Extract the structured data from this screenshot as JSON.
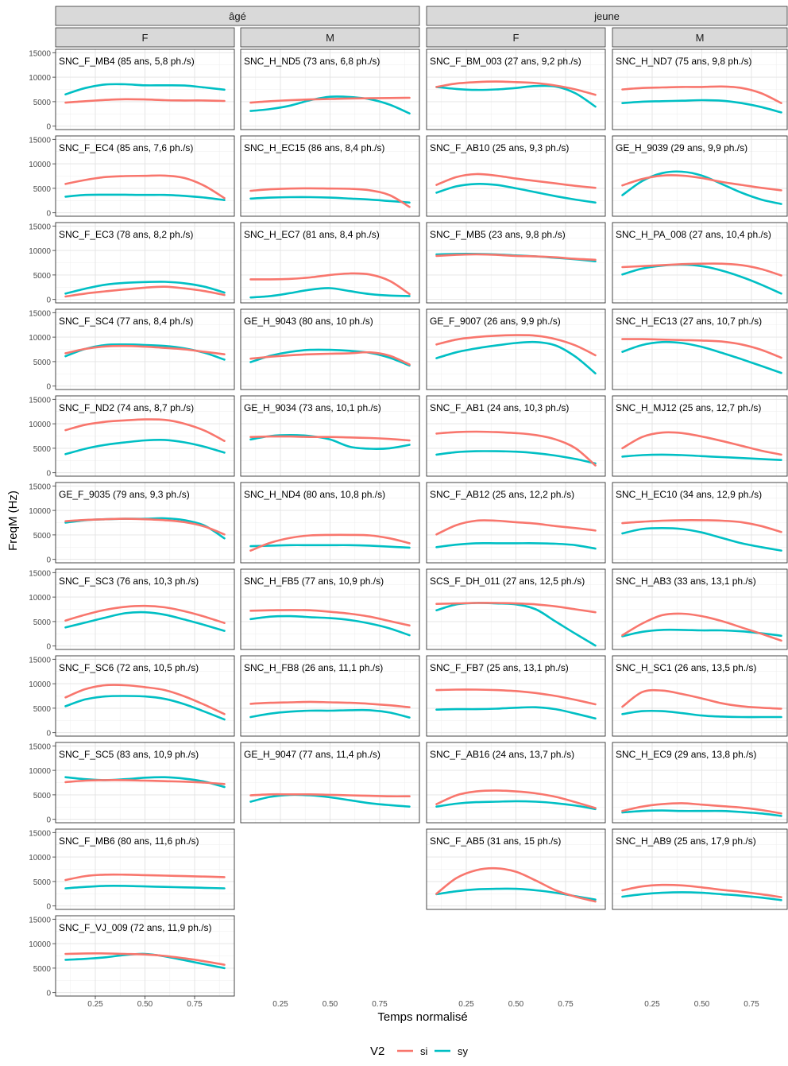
{
  "chart_data": {
    "type": "line",
    "ylabel": "FreqM (Hz)",
    "xlabel": "Temps normalisé",
    "x_ticks": [
      0.25,
      0.5,
      0.75
    ],
    "y_ticks": [
      0,
      5000,
      10000,
      15000
    ],
    "xlim": [
      0.05,
      0.95
    ],
    "ylim": [
      -700,
      15700
    ],
    "grid": true,
    "legend": {
      "title": "V2",
      "position": "bottom",
      "entries": [
        {
          "label": "si",
          "color": "#F8766D"
        },
        {
          "label": "sy",
          "color": "#00BFC4"
        }
      ]
    },
    "strip_groups": [
      "âgé",
      "jeune"
    ],
    "strip_sexes": [
      "F",
      "M"
    ],
    "x": [
      0.1,
      0.2,
      0.3,
      0.4,
      0.5,
      0.6,
      0.7,
      0.8,
      0.9
    ],
    "panels": [
      {
        "col": 0,
        "row": 0,
        "label": "SNC_F_MB4 (85 ans, 5,8 ph./s)",
        "si": [
          4800,
          5100,
          5350,
          5500,
          5450,
          5300,
          5250,
          5250,
          5150
        ],
        "sy": [
          6500,
          7800,
          8500,
          8550,
          8350,
          8350,
          8300,
          7900,
          7450
        ]
      },
      {
        "col": 0,
        "row": 1,
        "label": "SNC_F_EC4 (85 ans, 7,6 ph./s)",
        "si": [
          5900,
          6700,
          7300,
          7500,
          7550,
          7600,
          7100,
          5500,
          3000
        ],
        "sy": [
          3300,
          3650,
          3700,
          3700,
          3650,
          3650,
          3450,
          3100,
          2600
        ]
      },
      {
        "col": 0,
        "row": 2,
        "label": "SNC_F_EC3 (78 ans, 8,2 ph./s)",
        "si": [
          600,
          1200,
          1650,
          2050,
          2400,
          2600,
          2250,
          1700,
          900
        ],
        "sy": [
          1200,
          2200,
          3000,
          3400,
          3550,
          3600,
          3300,
          2600,
          1400
        ]
      },
      {
        "col": 0,
        "row": 3,
        "label": "SNC_F_SC4 (77 ans, 8,4 ph./s)",
        "si": [
          6700,
          7600,
          8100,
          8200,
          8050,
          7800,
          7500,
          7000,
          6500
        ],
        "sy": [
          6100,
          7600,
          8400,
          8500,
          8400,
          8200,
          7700,
          6800,
          5400
        ]
      },
      {
        "col": 0,
        "row": 4,
        "label": "SNC_F_ND2 (74 ans, 8,7 ph./s)",
        "si": [
          8700,
          9800,
          10400,
          10700,
          10900,
          10800,
          10000,
          8600,
          6500
        ],
        "sy": [
          3800,
          4900,
          5700,
          6200,
          6600,
          6700,
          6200,
          5300,
          4100
        ]
      },
      {
        "col": 0,
        "row": 5,
        "label": "GE_F_9035 (79 ans, 9,3 ph./s)",
        "si": [
          7800,
          8050,
          8200,
          8300,
          8200,
          8000,
          7600,
          6700,
          5100
        ],
        "sy": [
          7500,
          8000,
          8200,
          8300,
          8300,
          8400,
          8000,
          6900,
          4300
        ]
      },
      {
        "col": 0,
        "row": 6,
        "label": "SNC_F_SC3 (76 ans, 10,3 ph./s)",
        "si": [
          5200,
          6400,
          7400,
          8000,
          8200,
          7900,
          7100,
          6000,
          4700
        ],
        "sy": [
          3800,
          4800,
          5800,
          6700,
          6900,
          6400,
          5400,
          4300,
          3100
        ]
      },
      {
        "col": 0,
        "row": 7,
        "label": "SNC_F_SC6 (72 ans, 10,5 ph./s)",
        "si": [
          7200,
          8900,
          9700,
          9700,
          9300,
          8700,
          7400,
          5700,
          3800
        ],
        "sy": [
          5400,
          6800,
          7400,
          7500,
          7400,
          6900,
          5800,
          4300,
          2700
        ]
      },
      {
        "col": 0,
        "row": 8,
        "label": "SNC_F_SC5 (83 ans, 10,9 ph./s)",
        "si": [
          7600,
          7900,
          8000,
          8000,
          7900,
          7800,
          7700,
          7500,
          7200
        ],
        "sy": [
          8600,
          8200,
          8000,
          8200,
          8500,
          8600,
          8300,
          7700,
          6600
        ]
      },
      {
        "col": 0,
        "row": 9,
        "label": "SNC_F_MB6 (80 ans, 11,6 ph./s)",
        "si": [
          5300,
          6100,
          6400,
          6400,
          6300,
          6200,
          6100,
          6000,
          5900
        ],
        "sy": [
          3600,
          3900,
          4100,
          4100,
          4000,
          3900,
          3800,
          3700,
          3600
        ]
      },
      {
        "col": 0,
        "row": 10,
        "label": "SNC_F_VJ_009 (72 ans, 11,9 ph./s)",
        "si": [
          7900,
          8000,
          8000,
          7900,
          7800,
          7500,
          7000,
          6400,
          5700
        ],
        "sy": [
          6700,
          6900,
          7200,
          7700,
          7900,
          7400,
          6600,
          5800,
          5000
        ]
      },
      {
        "col": 1,
        "row": 0,
        "label": "SNC_H_ND5 (73 ans, 6,8 ph./s)",
        "si": [
          4800,
          5100,
          5300,
          5450,
          5550,
          5650,
          5700,
          5750,
          5800
        ],
        "sy": [
          3100,
          3500,
          4200,
          5300,
          6000,
          5950,
          5500,
          4400,
          2600
        ]
      },
      {
        "col": 1,
        "row": 1,
        "label": "SNC_H_EC15 (86 ans, 8,4 ph./s)",
        "si": [
          4500,
          4800,
          4950,
          5000,
          4950,
          4900,
          4600,
          3600,
          1200
        ],
        "sy": [
          2900,
          3100,
          3200,
          3200,
          3100,
          2900,
          2700,
          2400,
          2100
        ]
      },
      {
        "col": 1,
        "row": 2,
        "label": "SNC_H_EC7 (81 ans, 8,4 ph./s)",
        "si": [
          4100,
          4100,
          4200,
          4500,
          5000,
          5300,
          5100,
          3800,
          1100
        ],
        "sy": [
          400,
          700,
          1300,
          2000,
          2300,
          1700,
          1100,
          800,
          700
        ]
      },
      {
        "col": 1,
        "row": 3,
        "label": "GE_H_9043 (80 ans, 10 ph./s)",
        "si": [
          5600,
          6000,
          6300,
          6500,
          6600,
          6700,
          6900,
          6200,
          4400
        ],
        "sy": [
          4900,
          6200,
          7000,
          7400,
          7400,
          7200,
          6800,
          5800,
          4200
        ]
      },
      {
        "col": 1,
        "row": 4,
        "label": "GE_H_9034 (73 ans, 10,1 ph./s)",
        "si": [
          7300,
          7400,
          7400,
          7300,
          7300,
          7200,
          7100,
          6900,
          6600
        ],
        "sy": [
          6800,
          7500,
          7700,
          7500,
          6800,
          5300,
          4900,
          5000,
          5700
        ]
      },
      {
        "col": 1,
        "row": 5,
        "label": "SNC_H_ND4 (80 ans, 10,8 ph./s)",
        "si": [
          1800,
          3400,
          4400,
          4900,
          5000,
          5000,
          4900,
          4300,
          3300
        ],
        "sy": [
          2700,
          2800,
          2900,
          2900,
          2900,
          2900,
          2800,
          2600,
          2400
        ]
      },
      {
        "col": 1,
        "row": 6,
        "label": "SNC_H_FB5 (77 ans, 10,9 ph./s)",
        "si": [
          7200,
          7300,
          7350,
          7300,
          7000,
          6600,
          6000,
          5100,
          4200
        ],
        "sy": [
          5500,
          6000,
          6100,
          5900,
          5700,
          5300,
          4600,
          3600,
          2200
        ]
      },
      {
        "col": 1,
        "row": 7,
        "label": "SNC_H_FB8 (26 ans, 11,1 ph./s)",
        "si": [
          5900,
          6100,
          6200,
          6300,
          6200,
          6100,
          5900,
          5600,
          5200
        ],
        "sy": [
          3200,
          3900,
          4300,
          4500,
          4500,
          4600,
          4600,
          4100,
          3100
        ]
      },
      {
        "col": 1,
        "row": 8,
        "label": "GE_H_9047 (77 ans, 11,4 ph./s)",
        "si": [
          4900,
          5100,
          5100,
          5100,
          5000,
          4900,
          4800,
          4700,
          4700
        ],
        "sy": [
          3600,
          4600,
          5000,
          4900,
          4500,
          3900,
          3300,
          2900,
          2600
        ]
      },
      {
        "col": 2,
        "row": 0,
        "label": "SNC_F_BM_003 (27 ans, 9,2 ph./s)",
        "si": [
          8000,
          8700,
          9000,
          9100,
          9000,
          8800,
          8300,
          7500,
          6400
        ],
        "sy": [
          8000,
          7600,
          7400,
          7500,
          7800,
          8200,
          8100,
          6700,
          4000
        ]
      },
      {
        "col": 2,
        "row": 1,
        "label": "SNC_F_AB10 (25 ans, 9,3 ph./s)",
        "si": [
          5700,
          7300,
          7900,
          7600,
          7000,
          6500,
          6000,
          5500,
          5100
        ],
        "sy": [
          4100,
          5400,
          5900,
          5700,
          5000,
          4200,
          3400,
          2700,
          2100
        ]
      },
      {
        "col": 2,
        "row": 2,
        "label": "SNC_F_MB5 (23 ans, 9,8 ph./s)",
        "si": [
          8900,
          9100,
          9200,
          9100,
          8900,
          8800,
          8600,
          8300,
          8100
        ],
        "sy": [
          9200,
          9300,
          9300,
          9200,
          9000,
          8800,
          8500,
          8200,
          7800
        ]
      },
      {
        "col": 2,
        "row": 3,
        "label": "GE_F_9007 (26 ans, 9,9 ph./s)",
        "si": [
          8500,
          9500,
          10000,
          10300,
          10400,
          10300,
          9600,
          8300,
          6300
        ],
        "sy": [
          5700,
          6900,
          7700,
          8300,
          8800,
          9000,
          8300,
          6000,
          2600
        ]
      },
      {
        "col": 2,
        "row": 4,
        "label": "SNC_F_AB1 (24 ans, 10,3 ph./s)",
        "si": [
          8000,
          8300,
          8400,
          8300,
          8100,
          7700,
          6800,
          5000,
          1500
        ],
        "sy": [
          3700,
          4200,
          4400,
          4400,
          4300,
          4000,
          3500,
          2800,
          1900
        ]
      },
      {
        "col": 2,
        "row": 5,
        "label": "SNC_F_AB12 (25 ans, 12,2 ph./s)",
        "si": [
          5100,
          7000,
          7900,
          7900,
          7600,
          7300,
          6800,
          6400,
          5900
        ],
        "sy": [
          2500,
          3000,
          3300,
          3300,
          3300,
          3300,
          3200,
          2900,
          2200
        ]
      },
      {
        "col": 2,
        "row": 6,
        "label": "SCS_F_DH_011 (27 ans, 12,5 ph./s)",
        "si": [
          8600,
          8700,
          8800,
          8800,
          8700,
          8500,
          8100,
          7500,
          6900
        ],
        "sy": [
          7300,
          8500,
          8800,
          8700,
          8500,
          7500,
          5000,
          2500,
          100
        ]
      },
      {
        "col": 2,
        "row": 7,
        "label": "SNC_F_FB7 (25 ans, 13,1 ph./s)",
        "si": [
          8700,
          8800,
          8800,
          8700,
          8500,
          8100,
          7500,
          6700,
          5800
        ],
        "sy": [
          4700,
          4800,
          4800,
          4900,
          5100,
          5200,
          4800,
          3900,
          2900
        ]
      },
      {
        "col": 2,
        "row": 8,
        "label": "SNC_F_AB16 (24 ans, 13,7 ph./s)",
        "si": [
          3100,
          4900,
          5700,
          5900,
          5700,
          5300,
          4600,
          3500,
          2300
        ],
        "sy": [
          2600,
          3200,
          3500,
          3600,
          3700,
          3600,
          3300,
          2800,
          2100
        ]
      },
      {
        "col": 2,
        "row": 9,
        "label": "SNC_F_AB5 (31 ans, 15 ph./s)",
        "si": [
          2500,
          5700,
          7300,
          7700,
          7000,
          5200,
          3200,
          1900,
          900
        ],
        "sy": [
          2400,
          3000,
          3400,
          3500,
          3500,
          3200,
          2700,
          2000,
          1300
        ]
      },
      {
        "col": 3,
        "row": 0,
        "label": "SNC_H_ND7 (75 ans, 9,8 ph./s)",
        "si": [
          7500,
          7800,
          7900,
          8000,
          8000,
          8100,
          7800,
          6700,
          4700
        ],
        "sy": [
          4700,
          5000,
          5100,
          5200,
          5300,
          5200,
          4700,
          3900,
          2800
        ]
      },
      {
        "col": 3,
        "row": 1,
        "label": "GE_H_9039 (29 ans, 9,9 ph./s)",
        "si": [
          5600,
          6900,
          7600,
          7600,
          7100,
          6300,
          5700,
          5100,
          4600
        ],
        "sy": [
          3600,
          6500,
          8100,
          8400,
          7600,
          5900,
          4100,
          2700,
          1800
        ]
      },
      {
        "col": 3,
        "row": 2,
        "label": "SNC_H_PA_008 (27 ans, 10,4 ph./s)",
        "si": [
          6600,
          6800,
          7000,
          7200,
          7300,
          7300,
          7000,
          6200,
          4900
        ],
        "sy": [
          5100,
          6300,
          6900,
          7100,
          6800,
          5900,
          4600,
          3000,
          1200
        ]
      },
      {
        "col": 3,
        "row": 3,
        "label": "SNC_H_EC13 (27 ans, 10,7 ph./s)",
        "si": [
          9600,
          9600,
          9500,
          9400,
          9300,
          9100,
          8500,
          7400,
          5800
        ],
        "sy": [
          7000,
          8400,
          9000,
          8800,
          8000,
          6800,
          5500,
          4100,
          2700
        ]
      },
      {
        "col": 3,
        "row": 4,
        "label": "SNC_H_MJ12 (25 ans, 12,7 ph./s)",
        "si": [
          5000,
          7300,
          8200,
          8100,
          7400,
          6500,
          5500,
          4500,
          3700
        ],
        "sy": [
          3300,
          3600,
          3700,
          3600,
          3400,
          3200,
          3000,
          2800,
          2600
        ]
      },
      {
        "col": 3,
        "row": 5,
        "label": "SNC_H_EC10 (34 ans, 12,9 ph./s)",
        "si": [
          7400,
          7700,
          7900,
          8000,
          8000,
          7900,
          7600,
          6800,
          5600
        ],
        "sy": [
          5300,
          6200,
          6400,
          6200,
          5500,
          4400,
          3300,
          2500,
          1800
        ]
      },
      {
        "col": 3,
        "row": 6,
        "label": "SNC_H_AB3 (33 ans, 13,1 ph./s)",
        "si": [
          2200,
          4600,
          6300,
          6600,
          6100,
          5100,
          3800,
          2500,
          1100
        ],
        "sy": [
          2000,
          2900,
          3300,
          3300,
          3200,
          3200,
          3000,
          2600,
          2100
        ]
      },
      {
        "col": 3,
        "row": 7,
        "label": "SNC_H_SC1 (26 ans, 13,5 ph./s)",
        "si": [
          5300,
          8300,
          8600,
          7900,
          7000,
          6000,
          5400,
          5100,
          4900
        ],
        "sy": [
          3800,
          4400,
          4400,
          4000,
          3500,
          3300,
          3200,
          3200,
          3200
        ]
      },
      {
        "col": 3,
        "row": 8,
        "label": "SNC_H_EC9 (29 ans, 13,8 ph./s)",
        "si": [
          1700,
          2600,
          3100,
          3300,
          3000,
          2700,
          2400,
          1900,
          1200
        ],
        "sy": [
          1400,
          1700,
          1800,
          1700,
          1700,
          1700,
          1500,
          1200,
          700
        ]
      },
      {
        "col": 3,
        "row": 9,
        "label": "SNC_H_AB9 (25 ans, 17,9 ph./s)",
        "si": [
          3200,
          4000,
          4300,
          4200,
          3800,
          3300,
          2900,
          2400,
          1800
        ],
        "sy": [
          1900,
          2400,
          2700,
          2800,
          2700,
          2400,
          2100,
          1700,
          1200
        ]
      }
    ]
  }
}
